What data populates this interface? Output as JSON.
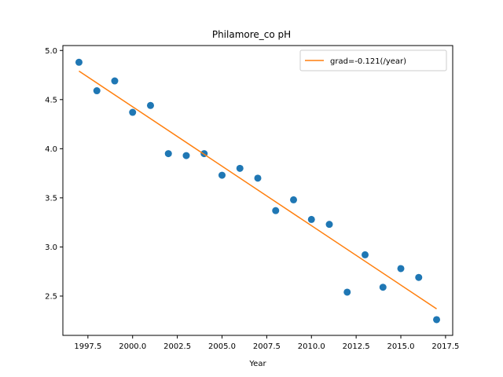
{
  "chart_data": {
    "type": "scatter",
    "title": "Philamore_co pH",
    "xlabel": "Year",
    "ylabel": "",
    "xlim": [
      1996.1,
      2017.9
    ],
    "ylim": [
      2.1,
      5.05
    ],
    "xticks": [
      1997.5,
      2000.0,
      2002.5,
      2005.0,
      2007.5,
      2010.0,
      2012.5,
      2015.0,
      2017.5
    ],
    "xtick_labels": [
      "1997.5",
      "2000.0",
      "2002.5",
      "2005.0",
      "2007.5",
      "2010.0",
      "2012.5",
      "2015.0",
      "2017.5"
    ],
    "yticks": [
      2.5,
      3.0,
      3.5,
      4.0,
      4.5,
      5.0
    ],
    "ytick_labels": [
      "2.5",
      "3.0",
      "3.5",
      "4.0",
      "4.5",
      "5.0"
    ],
    "grid": false,
    "legend_position": "top-right",
    "series": [
      {
        "type": "scatter",
        "color": "#1f77b4",
        "x": [
          1997,
          1998,
          1999,
          2000,
          2001,
          2002,
          2003,
          2004,
          2005,
          2006,
          2007,
          2008,
          2009,
          2010,
          2011,
          2012,
          2013,
          2014,
          2015,
          2016,
          2017
        ],
        "y": [
          4.88,
          4.59,
          4.69,
          4.37,
          4.44,
          3.95,
          3.93,
          3.95,
          3.73,
          3.8,
          3.7,
          3.37,
          3.48,
          3.28,
          3.23,
          2.54,
          2.92,
          2.59,
          2.78,
          2.69,
          2.26
        ]
      },
      {
        "type": "line",
        "name": "grad=-0.121(/year)",
        "color": "#ff7f0e",
        "x": [
          1997,
          2017
        ],
        "y": [
          4.79,
          2.37
        ]
      }
    ]
  }
}
